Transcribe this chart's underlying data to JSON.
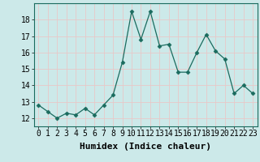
{
  "x": [
    0,
    1,
    2,
    3,
    4,
    5,
    6,
    7,
    8,
    9,
    10,
    11,
    12,
    13,
    14,
    15,
    16,
    17,
    18,
    19,
    20,
    21,
    22,
    23
  ],
  "y": [
    12.8,
    12.4,
    12.0,
    12.3,
    12.2,
    12.6,
    12.2,
    12.8,
    13.4,
    15.4,
    18.5,
    16.8,
    18.5,
    16.4,
    16.5,
    14.8,
    14.8,
    16.0,
    17.1,
    16.1,
    15.6,
    13.5,
    14.0,
    13.5
  ],
  "line_color": "#1a6b5e",
  "marker": "D",
  "marker_size": 2.5,
  "bg_color": "#cce9e9",
  "grid_color": "#e8c8c8",
  "xlabel": "Humidex (Indice chaleur)",
  "ylabel_ticks": [
    12,
    13,
    14,
    15,
    16,
    17,
    18
  ],
  "xlim": [
    -0.5,
    23.5
  ],
  "ylim": [
    11.5,
    19.0
  ],
  "xlabel_fontsize": 8,
  "tick_fontsize": 7
}
